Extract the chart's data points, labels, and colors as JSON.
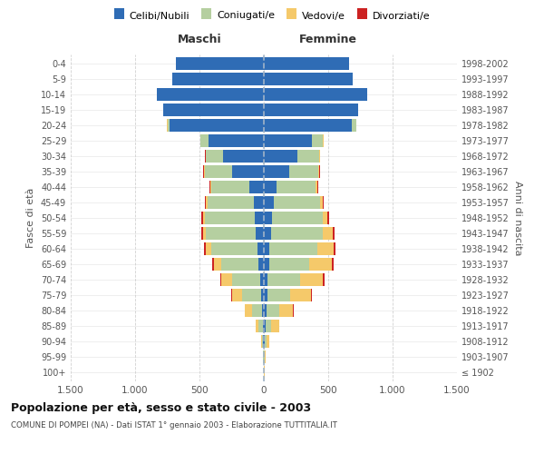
{
  "age_groups": [
    "100+",
    "95-99",
    "90-94",
    "85-89",
    "80-84",
    "75-79",
    "70-74",
    "65-69",
    "60-64",
    "55-59",
    "50-54",
    "45-49",
    "40-44",
    "35-39",
    "30-34",
    "25-29",
    "20-24",
    "15-19",
    "10-14",
    "5-9",
    "0-4"
  ],
  "birth_years": [
    "≤ 1902",
    "1903-1907",
    "1908-1912",
    "1913-1917",
    "1918-1922",
    "1923-1927",
    "1928-1932",
    "1933-1937",
    "1938-1942",
    "1943-1947",
    "1948-1952",
    "1953-1957",
    "1958-1962",
    "1963-1967",
    "1968-1972",
    "1973-1977",
    "1978-1982",
    "1983-1987",
    "1988-1992",
    "1993-1997",
    "1998-2002"
  ],
  "males": {
    "celibi": [
      2,
      2,
      5,
      10,
      15,
      20,
      30,
      40,
      50,
      60,
      70,
      80,
      110,
      250,
      320,
      430,
      730,
      780,
      830,
      710,
      680
    ],
    "coniugati": [
      1,
      3,
      8,
      30,
      80,
      150,
      220,
      290,
      360,
      390,
      390,
      360,
      300,
      210,
      130,
      60,
      20,
      5,
      2,
      1,
      1
    ],
    "vedovi": [
      0,
      1,
      5,
      20,
      50,
      80,
      80,
      60,
      40,
      25,
      12,
      8,
      5,
      3,
      2,
      1,
      1,
      0,
      0,
      0,
      0
    ],
    "divorziati": [
      0,
      0,
      0,
      1,
      3,
      5,
      8,
      10,
      12,
      14,
      12,
      10,
      8,
      6,
      4,
      2,
      1,
      0,
      0,
      0,
      0
    ]
  },
  "females": {
    "nubili": [
      2,
      3,
      8,
      12,
      18,
      25,
      30,
      40,
      45,
      55,
      65,
      75,
      100,
      200,
      260,
      370,
      680,
      730,
      800,
      690,
      660
    ],
    "coniugate": [
      1,
      4,
      15,
      45,
      100,
      180,
      250,
      310,
      370,
      400,
      390,
      360,
      300,
      220,
      170,
      90,
      35,
      5,
      2,
      1,
      1
    ],
    "vedove": [
      1,
      5,
      20,
      60,
      110,
      160,
      180,
      180,
      130,
      80,
      40,
      20,
      12,
      8,
      4,
      2,
      2,
      0,
      0,
      0,
      0
    ],
    "divorziate": [
      0,
      0,
      1,
      2,
      4,
      6,
      10,
      12,
      14,
      16,
      14,
      12,
      10,
      8,
      5,
      3,
      1,
      0,
      0,
      0,
      0
    ]
  },
  "colors": {
    "celibi": "#2f6cb5",
    "coniugati": "#b5cfa0",
    "vedovi": "#f5c96a",
    "divorziati": "#cc2222"
  },
  "xlim": 1500,
  "title": "Popolazione per età, sesso e stato civile - 2003",
  "subtitle": "COMUNE DI POMPEI (NA) - Dati ISTAT 1° gennaio 2003 - Elaborazione TUTTITALIA.IT",
  "ylabel_left": "Fasce di età",
  "ylabel_right": "Anni di nascita",
  "xlabel_left": "Maschi",
  "xlabel_right": "Femmine",
  "legend_labels": [
    "Celibi/Nubili",
    "Coniugati/e",
    "Vedovi/e",
    "Divorziati/e"
  ],
  "xticks": [
    -1500,
    -1000,
    -500,
    0,
    500,
    1000,
    1500
  ],
  "xtick_labels": [
    "1.500",
    "1.000",
    "500",
    "0",
    "500",
    "1.000",
    "1.500"
  ],
  "bg_color": "#ffffff",
  "grid_color": "#cccccc",
  "spine_color": "#cccccc"
}
